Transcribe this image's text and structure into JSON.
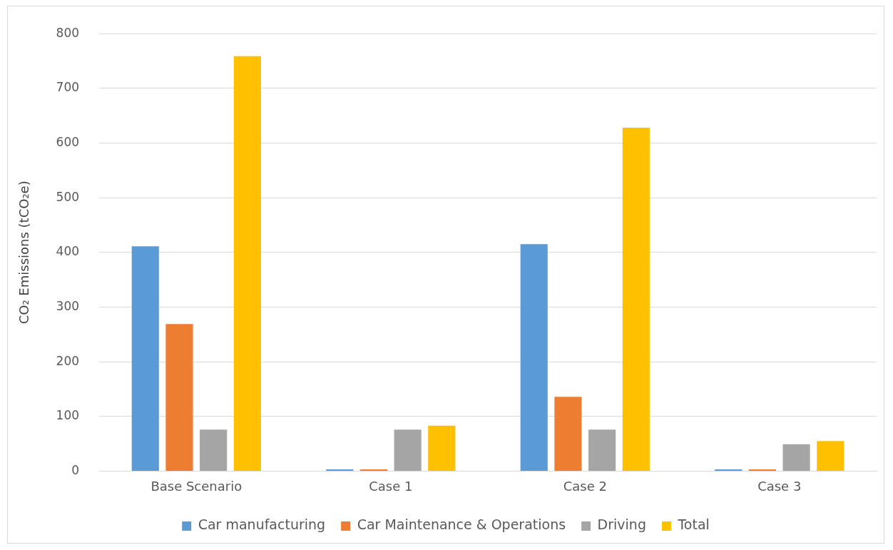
{
  "chart_data": {
    "type": "bar",
    "ylabel": "CO₂ Emissions (tCO₂e)",
    "categories": [
      "Base Scenario",
      "Case 1",
      "Case 2",
      "Case 3"
    ],
    "series": [
      {
        "name": "Car manufacturing",
        "color": "#5b9bd5",
        "values": [
          411,
          3,
          415,
          3
        ]
      },
      {
        "name": "Car Maintenance & Operations",
        "color": "#ed7d31",
        "values": [
          269,
          3,
          136,
          3
        ]
      },
      {
        "name": "Driving",
        "color": "#a5a5a5",
        "values": [
          76,
          76,
          76,
          49
        ]
      },
      {
        "name": "Total",
        "color": "#ffc000",
        "values": [
          759,
          83,
          628,
          55
        ]
      }
    ],
    "ylim": [
      0,
      800
    ],
    "yticks": [
      0,
      100,
      200,
      300,
      400,
      500,
      600,
      700,
      800
    ],
    "grid": "y",
    "legend": "bottom"
  }
}
